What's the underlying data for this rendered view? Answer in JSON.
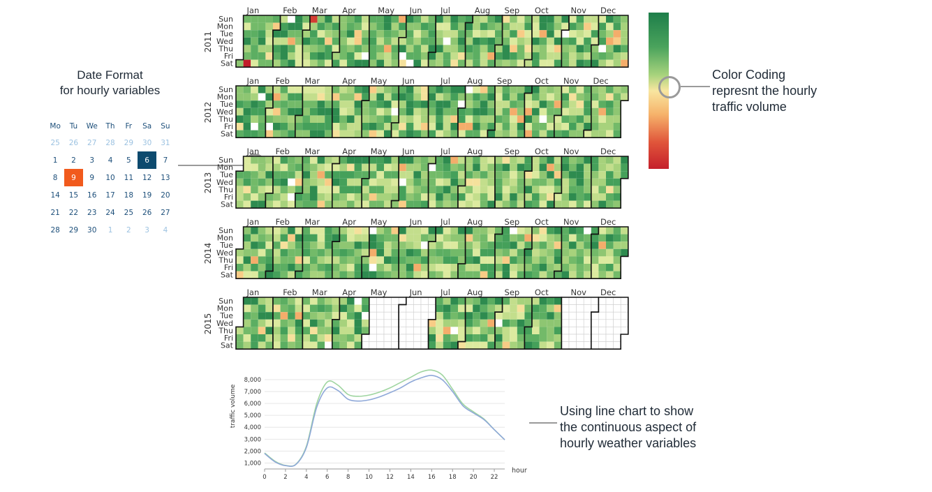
{
  "calendar": {
    "title": "Date Format\nfor hourly variables",
    "weekdays": [
      "Mo",
      "Tu",
      "We",
      "Th",
      "Fr",
      "Sa",
      "Su"
    ],
    "weeks": [
      [
        {
          "d": "25",
          "m": true
        },
        {
          "d": "26",
          "m": true
        },
        {
          "d": "27",
          "m": true
        },
        {
          "d": "28",
          "m": true
        },
        {
          "d": "29",
          "m": true
        },
        {
          "d": "30",
          "m": true
        },
        {
          "d": "31",
          "m": true
        }
      ],
      [
        {
          "d": "1"
        },
        {
          "d": "2"
        },
        {
          "d": "3"
        },
        {
          "d": "4"
        },
        {
          "d": "5"
        },
        {
          "d": "6",
          "s": "sel"
        },
        {
          "d": "7"
        }
      ],
      [
        {
          "d": "8"
        },
        {
          "d": "9",
          "s": "today"
        },
        {
          "d": "9"
        },
        {
          "d": "10"
        },
        {
          "d": "11"
        },
        {
          "d": "12"
        },
        {
          "d": "13"
        }
      ],
      [
        {
          "d": "14"
        },
        {
          "d": "15"
        },
        {
          "d": "16"
        },
        {
          "d": "17"
        },
        {
          "d": "18"
        },
        {
          "d": "19"
        },
        {
          "d": "20"
        }
      ],
      [
        {
          "d": "21"
        },
        {
          "d": "22"
        },
        {
          "d": "23"
        },
        {
          "d": "24"
        },
        {
          "d": "25"
        },
        {
          "d": "26"
        },
        {
          "d": "27"
        }
      ],
      [
        {
          "d": "28"
        },
        {
          "d": "29"
        },
        {
          "d": "30"
        },
        {
          "d": "1",
          "m": true
        },
        {
          "d": "2",
          "m": true
        },
        {
          "d": "3",
          "m": true
        },
        {
          "d": "4",
          "m": true
        }
      ]
    ]
  },
  "annotations": {
    "color_coding": "Color Coding\nrepresnt the hourly\n traffic volume",
    "line_chart": "Using line chart to show\nthe continuous aspect of\nhourly weather variables"
  },
  "colors": {
    "scale": [
      "#1e7e4a",
      "#4aa35c",
      "#a8d37d",
      "#f8e6a0",
      "#f6b36b",
      "#e0553a",
      "#c51f2b"
    ],
    "selected": "#0d4a6e",
    "today": "#f15a1d",
    "series1": "#9fd5a0",
    "series2": "#8ea8d8"
  },
  "chart_data": [
    {
      "type": "heatmap",
      "years": [
        "2011",
        "2012",
        "2013",
        "2014",
        "2015"
      ],
      "months": [
        "Jan",
        "Feb",
        "Mar",
        "Apr",
        "May",
        "Jun",
        "Jul",
        "Aug",
        "Sep",
        "Oct",
        "Nov",
        "Dec"
      ],
      "weekdays": [
        "Sun",
        "Mon",
        "Tue",
        "Wed",
        "Thu",
        "Fri",
        "Sat"
      ],
      "missing_months": {
        "2015": [
          "May",
          "Jun",
          "Nov",
          "Dec"
        ]
      },
      "value_meaning": "hourly traffic volume (green = high, red = low)"
    },
    {
      "type": "line",
      "xlabel": "hour",
      "ylabel": "traffic volume",
      "x": [
        0,
        1,
        2,
        3,
        4,
        5,
        6,
        7,
        8,
        9,
        10,
        11,
        12,
        13,
        14,
        15,
        16,
        17,
        18,
        19,
        20,
        21,
        22,
        23
      ],
      "xticks": [
        0,
        2,
        4,
        6,
        8,
        10,
        12,
        14,
        16,
        18,
        20,
        22
      ],
      "yticks": [
        "1,000",
        "2,000",
        "3,000",
        "4,000",
        "5,000",
        "6,000",
        "7,000",
        "8,000"
      ],
      "ylim": [
        500,
        8700
      ],
      "series": [
        {
          "values": [
            1850,
            1150,
            800,
            900,
            2400,
            6000,
            7800,
            7550,
            6750,
            6600,
            6700,
            6950,
            7300,
            7750,
            8200,
            8650,
            8800,
            8400,
            7200,
            5950,
            5300,
            4700,
            3800,
            2950
          ]
        },
        {
          "values": [
            1800,
            1100,
            780,
            880,
            2300,
            5700,
            7300,
            7100,
            6350,
            6200,
            6300,
            6550,
            6900,
            7300,
            7800,
            8150,
            8350,
            8000,
            7000,
            5800,
            5200,
            4650,
            3800,
            2950
          ]
        }
      ]
    }
  ]
}
